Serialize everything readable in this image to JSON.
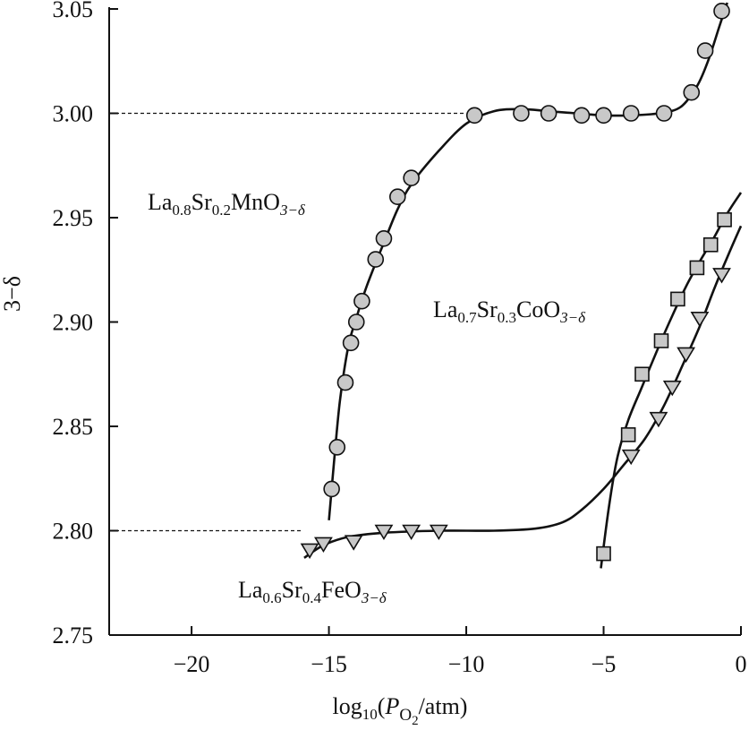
{
  "chart_data": {
    "type": "scatter",
    "title": "",
    "xlabel": {
      "prefix": "log",
      "base": "10",
      "open": "(",
      "var": "P",
      "var_sub": "O",
      "var_subsub": "2",
      "close": "/atm)"
    },
    "ylabel": "3−δ",
    "xlim": [
      -23,
      0
    ],
    "ylim": [
      2.75,
      3.05
    ],
    "x_ticks": [
      -20,
      -15,
      -10,
      -5,
      0
    ],
    "x_tick_labels": [
      "−20",
      "−15",
      "−10",
      "−5",
      "0"
    ],
    "y_ticks": [
      2.75,
      2.8,
      2.85,
      2.9,
      2.95,
      3.0,
      3.05
    ],
    "y_tick_labels": [
      "2.75",
      "2.80",
      "2.85",
      "2.90",
      "2.95",
      "3.00",
      "3.05"
    ],
    "grid": false,
    "reference_lines": [
      {
        "y": 3.0,
        "x_from": -23,
        "x_to": -10,
        "style": "dashed"
      },
      {
        "y": 2.8,
        "x_from": -23,
        "x_to": -16,
        "style": "dashed"
      }
    ],
    "series": [
      {
        "label": {
          "parts": [
            "La",
            "0.8",
            "Sr",
            "0.2",
            "MnO",
            "3−δ"
          ]
        },
        "marker": "circle",
        "color": "#c8c8c8",
        "points": [
          [
            -14.9,
            2.82
          ],
          [
            -14.7,
            2.84
          ],
          [
            -14.4,
            2.871
          ],
          [
            -14.2,
            2.89
          ],
          [
            -14.0,
            2.9
          ],
          [
            -13.8,
            2.91
          ],
          [
            -13.3,
            2.93
          ],
          [
            -13.0,
            2.94
          ],
          [
            -12.5,
            2.96
          ],
          [
            -12.0,
            2.969
          ],
          [
            -9.7,
            2.999
          ],
          [
            -8.0,
            3.0
          ],
          [
            -7.0,
            3.0
          ],
          [
            -5.8,
            2.999
          ],
          [
            -5.0,
            2.999
          ],
          [
            -4.0,
            3.0
          ],
          [
            -2.8,
            3.0
          ],
          [
            -1.8,
            3.01
          ],
          [
            -1.3,
            3.03
          ],
          [
            -0.7,
            3.049
          ]
        ],
        "curve": [
          [
            -15.0,
            2.805
          ],
          [
            -14.8,
            2.835
          ],
          [
            -14.6,
            2.862
          ],
          [
            -14.3,
            2.888
          ],
          [
            -14.0,
            2.902
          ],
          [
            -13.6,
            2.918
          ],
          [
            -13.0,
            2.938
          ],
          [
            -12.5,
            2.954
          ],
          [
            -12.0,
            2.966
          ],
          [
            -11.0,
            2.982
          ],
          [
            -10.0,
            2.995
          ],
          [
            -9.0,
            3.001
          ],
          [
            -8.0,
            3.002
          ],
          [
            -7.0,
            3.001
          ],
          [
            -6.0,
            3.0
          ],
          [
            -5.0,
            2.999
          ],
          [
            -4.0,
            2.999
          ],
          [
            -3.0,
            3.0
          ],
          [
            -2.2,
            3.003
          ],
          [
            -1.6,
            3.013
          ],
          [
            -1.2,
            3.025
          ],
          [
            -0.8,
            3.041
          ],
          [
            -0.5,
            3.053
          ]
        ]
      },
      {
        "label": {
          "parts": [
            "La",
            "0.7",
            "Sr",
            "0.3",
            "CoO",
            "3−δ"
          ]
        },
        "marker": "square",
        "color": "#c8c8c8",
        "points": [
          [
            -5.0,
            2.789
          ],
          [
            -4.1,
            2.846
          ],
          [
            -3.6,
            2.875
          ],
          [
            -2.9,
            2.891
          ],
          [
            -2.3,
            2.911
          ],
          [
            -1.6,
            2.926
          ],
          [
            -1.1,
            2.937
          ],
          [
            -0.6,
            2.949
          ]
        ],
        "curve": [
          [
            -5.1,
            2.782
          ],
          [
            -4.8,
            2.812
          ],
          [
            -4.5,
            2.835
          ],
          [
            -4.1,
            2.853
          ],
          [
            -3.6,
            2.869
          ],
          [
            -3.0,
            2.888
          ],
          [
            -2.5,
            2.903
          ],
          [
            -2.0,
            2.917
          ],
          [
            -1.5,
            2.929
          ],
          [
            -1.0,
            2.94
          ],
          [
            -0.5,
            2.952
          ],
          [
            0.0,
            2.962
          ]
        ]
      },
      {
        "label": {
          "parts": [
            "La",
            "0.6",
            "Sr",
            "0.4",
            "FeO",
            "3−δ"
          ]
        },
        "marker": "triangle-down",
        "color": "#c8c8c8",
        "points": [
          [
            -15.7,
            2.791
          ],
          [
            -15.2,
            2.794
          ],
          [
            -14.1,
            2.795
          ],
          [
            -13.0,
            2.8
          ],
          [
            -12.0,
            2.8
          ],
          [
            -11.0,
            2.8
          ],
          [
            -4.0,
            2.836
          ],
          [
            -3.0,
            2.854
          ],
          [
            -2.5,
            2.869
          ],
          [
            -2.0,
            2.885
          ],
          [
            -1.5,
            2.902
          ],
          [
            -0.7,
            2.923
          ]
        ],
        "curve": [
          [
            -15.9,
            2.787
          ],
          [
            -15.2,
            2.793
          ],
          [
            -14.3,
            2.797
          ],
          [
            -13.0,
            2.799
          ],
          [
            -11.0,
            2.8
          ],
          [
            -9.0,
            2.8
          ],
          [
            -7.5,
            2.801
          ],
          [
            -6.5,
            2.804
          ],
          [
            -5.8,
            2.81
          ],
          [
            -5.0,
            2.82
          ],
          [
            -4.3,
            2.831
          ],
          [
            -3.5,
            2.844
          ],
          [
            -2.8,
            2.86
          ],
          [
            -2.1,
            2.88
          ],
          [
            -1.5,
            2.898
          ],
          [
            -1.0,
            2.915
          ],
          [
            -0.5,
            2.931
          ],
          [
            0.0,
            2.946
          ]
        ]
      }
    ]
  }
}
